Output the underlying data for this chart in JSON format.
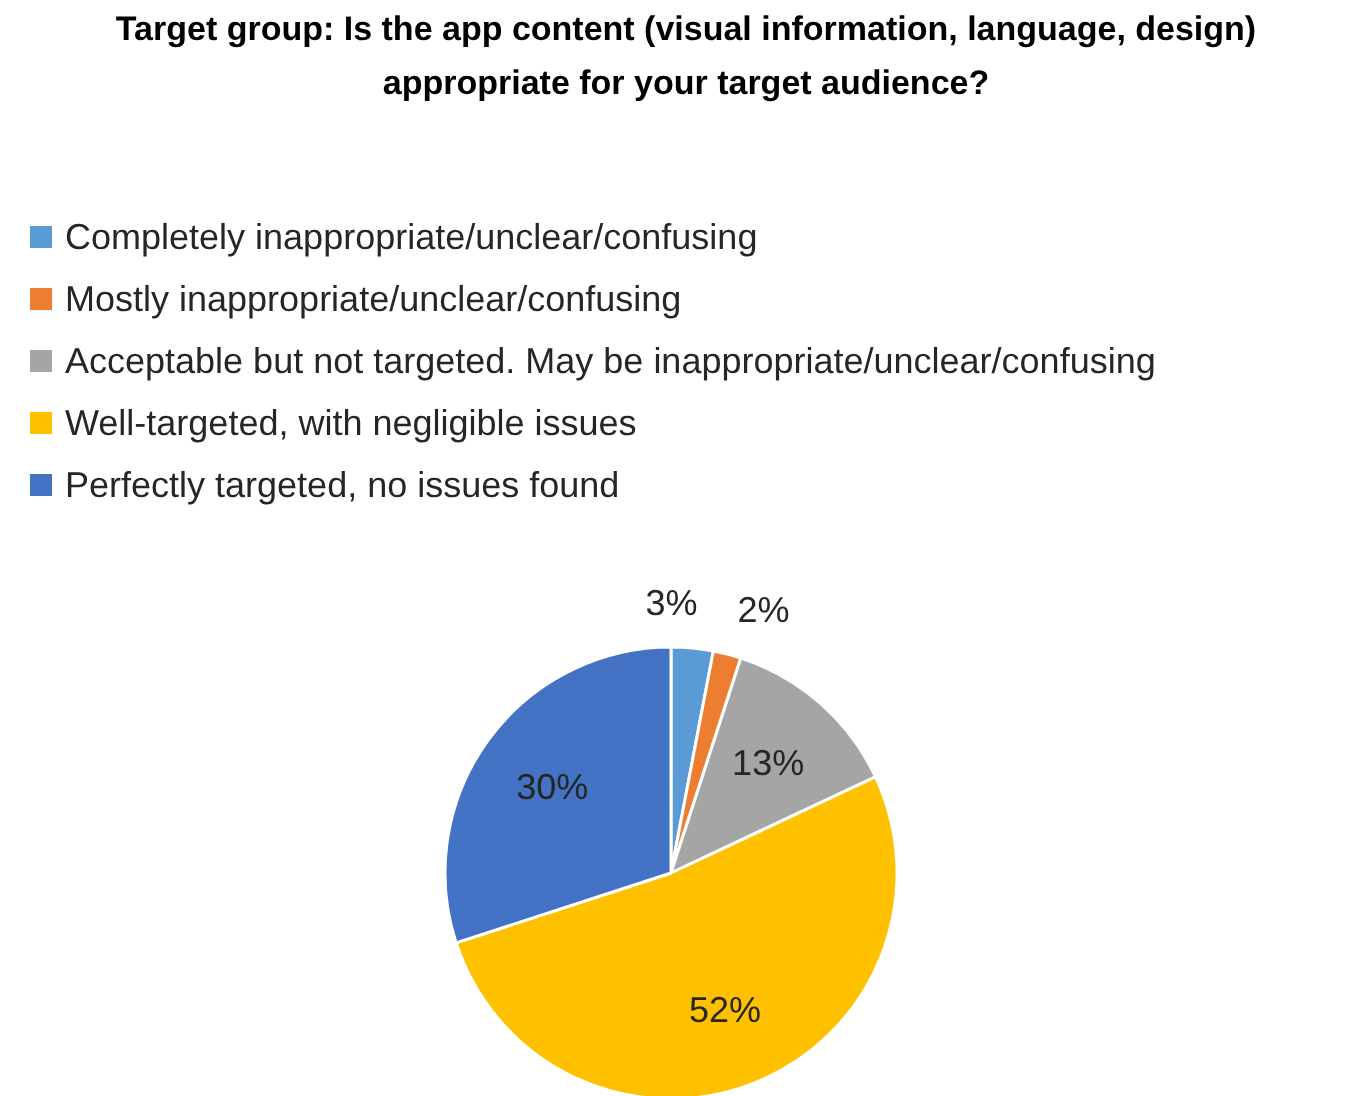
{
  "chart_data": {
    "type": "pie",
    "title": "Target group: Is the app content (visual information, language, design)\nappropriate for your target audience?",
    "categories": [
      "Completely inappropriate/unclear/confusing",
      "Mostly inappropriate/unclear/confusing",
      "Acceptable but not targeted. May be inappropriate/unclear/confusing",
      "Well-targeted, with negligible issues",
      "Perfectly targeted, no issues found"
    ],
    "values": [
      3,
      2,
      13,
      52,
      30
    ],
    "colors": [
      "#5b9bd5",
      "#ed7d31",
      "#a5a5a5",
      "#ffc000",
      "#4472c4"
    ],
    "value_labels": [
      "3%",
      "2%",
      "13%",
      "52%",
      "30%"
    ],
    "legend": "top left"
  }
}
